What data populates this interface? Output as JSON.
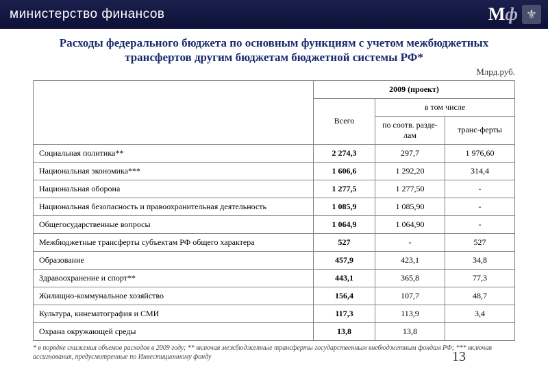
{
  "header": {
    "org_name": "министерство финансов",
    "logo_m": "М",
    "logo_phi": "ф"
  },
  "title": "Расходы федерального бюджета  по основным функциям с учетом межбюджетных трансфертов другим бюджетам бюджетной системы РФ*",
  "unit": "Млрд.руб.",
  "table": {
    "col_year": "2009 (проект)",
    "col_total": "Всего",
    "col_including": "в том числе",
    "col_sections": "по соотв. разде­лам",
    "col_transfers": "транс-ферты",
    "rows": [
      {
        "label": "Социальная политика**",
        "total": "2 274,3",
        "sections": "297,7",
        "transfers": "1 976,60"
      },
      {
        "label": "Национальная экономика***",
        "total": "1 606,6",
        "sections": "1 292,20",
        "transfers": "314,4"
      },
      {
        "label": "Национальная оборона",
        "total": "1 277,5",
        "sections": "1 277,50",
        "transfers": "-"
      },
      {
        "label": "Национальная безопасность и правоохранительная деятельность",
        "total": "1 085,9",
        "sections": "1 085,90",
        "transfers": "-"
      },
      {
        "label": "Общегосударственные вопросы",
        "total": "1 064,9",
        "sections": "1 064,90",
        "transfers": "-"
      },
      {
        "label": "Межбюджетные трансферты субъектам РФ общего характера",
        "total": "527",
        "sections": "-",
        "transfers": "527"
      },
      {
        "label": "Образование",
        "total": "457,9",
        "sections": "423,1",
        "transfers": "34,8"
      },
      {
        "label": "Здравоохранение и спорт**",
        "total": "443,1",
        "sections": "365,8",
        "transfers": "77,3"
      },
      {
        "label": "Жилищно-коммунальное хозяйство",
        "total": "156,4",
        "sections": "107,7",
        "transfers": "48,7"
      },
      {
        "label": "Культура, кинематография и СМИ",
        "total": "117,3",
        "sections": "113,9",
        "transfers": "3,4"
      },
      {
        "label": "Охрана окружающей среды",
        "total": "13,8",
        "sections": "13,8",
        "transfers": ""
      }
    ]
  },
  "footnote": "* в порядке снижения объемов расходов в 2009 году; ** включая межбюджетные трансферты государственным внебюджетным фондам РФ; *** включая ассигнования, предусмотренные по Инвестиционному фонду",
  "page_number": "13",
  "colors": {
    "title_color": "#1a2b6d",
    "header_bg": "#0d1138",
    "border": "#808080"
  }
}
